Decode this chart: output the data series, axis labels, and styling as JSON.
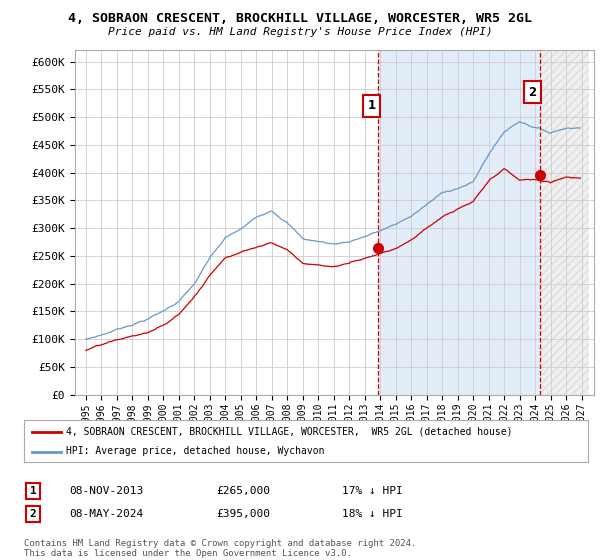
{
  "title": "4, SOBRAON CRESCENT, BROCKHILL VILLAGE, WORCESTER, WR5 2GL",
  "subtitle": "Price paid vs. HM Land Registry's House Price Index (HPI)",
  "ylim": [
    0,
    620000
  ],
  "yticks": [
    0,
    50000,
    100000,
    150000,
    200000,
    250000,
    300000,
    350000,
    400000,
    450000,
    500000,
    550000,
    600000
  ],
  "ytick_labels": [
    "£0",
    "£50K",
    "£100K",
    "£150K",
    "£200K",
    "£250K",
    "£300K",
    "£350K",
    "£400K",
    "£450K",
    "£500K",
    "£550K",
    "£600K"
  ],
  "hpi_color": "#6699cc",
  "price_color": "#cc0000",
  "vline_color": "#cc0000",
  "grid_color": "#cccccc",
  "bg_color": "#ffffff",
  "plot_bg_color": "#ffffff",
  "shade_between_color": "#ddeeff",
  "shade_after_color": "#e8e8e8",
  "transaction1_price": 265000,
  "transaction2_price": 395000,
  "annotation1_label": "1",
  "annotation2_label": "2",
  "legend_property_label": "4, SOBRAON CRESCENT, BROCKHILL VILLAGE, WORCESTER,  WR5 2GL (detached house)",
  "legend_hpi_label": "HPI: Average price, detached house, Wychavon",
  "note1_box": "1",
  "note1_date": "08-NOV-2013",
  "note1_price": "£265,000",
  "note1_hpi": "17% ↓ HPI",
  "note2_box": "2",
  "note2_date": "08-MAY-2024",
  "note2_price": "£395,000",
  "note2_hpi": "18% ↓ HPI",
  "copyright_text": "Contains HM Land Registry data © Crown copyright and database right 2024.\nThis data is licensed under the Open Government Licence v3.0.",
  "xstart_year": 1995,
  "xend_year": 2027,
  "t1_year": 2013,
  "t1_month": 11,
  "t2_year": 2024,
  "t2_month": 5
}
